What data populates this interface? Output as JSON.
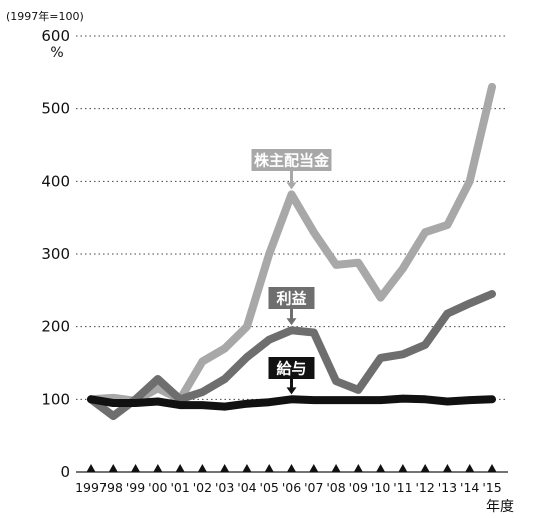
{
  "chart_data": {
    "type": "line",
    "top_note": "(1997年=100)",
    "y_unit": "%",
    "xlabel": "年度",
    "categories": [
      "1997",
      "'98",
      "'99",
      "'00",
      "'01",
      "'02",
      "'03",
      "'04",
      "'05",
      "'06",
      "'07",
      "'08",
      "'09",
      "'10",
      "'11",
      "'12",
      "'13",
      "'14",
      "'15"
    ],
    "ylim": [
      0,
      600
    ],
    "yticks": [
      0,
      100,
      200,
      300,
      400,
      500,
      600
    ],
    "grid": "dotted horizontal",
    "series": [
      {
        "name": "株主配当金",
        "color": "#a8a8a8",
        "label_bg": "#a8a8a8",
        "values": [
          100,
          102,
          98,
          115,
          100,
          152,
          170,
          200,
          300,
          382,
          330,
          285,
          288,
          240,
          280,
          330,
          340,
          400,
          530
        ]
      },
      {
        "name": "利益",
        "color": "#6e6e6e",
        "label_bg": "#6e6e6e",
        "values": [
          100,
          77,
          100,
          128,
          100,
          110,
          128,
          158,
          182,
          195,
          192,
          125,
          113,
          157,
          162,
          175,
          218,
          232,
          245
        ]
      },
      {
        "name": "給与",
        "color": "#111111",
        "label_bg": "#111111",
        "values": [
          100,
          95,
          95,
          97,
          92,
          92,
          90,
          94,
          96,
          100,
          99,
          99,
          99,
          99,
          101,
          100,
          97,
          99,
          100
        ]
      }
    ]
  }
}
